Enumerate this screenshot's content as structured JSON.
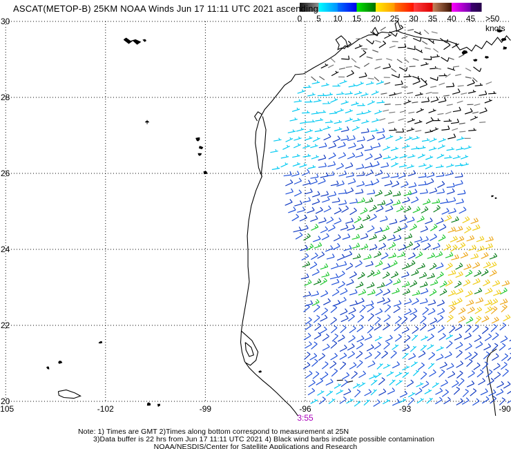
{
  "header": {
    "title": "ASCAT(METOP-B) 25KM NOAA Winds Jun 17 11:11 UTC 2021 ascending",
    "colorbar": {
      "tick_labels": [
        "0",
        "5",
        "10",
        "15",
        "20",
        "25",
        "30",
        "35",
        "40",
        "45"
      ],
      "last_label": ">50 knots",
      "segments": [
        {
          "c1": "#151515",
          "c2": "#8f8f8f"
        },
        {
          "c1": "#00ffff",
          "c2": "#0090ff"
        },
        {
          "c1": "#0070ff",
          "c2": "#0000ee"
        },
        {
          "c1": "#00e800",
          "c2": "#006e00"
        },
        {
          "c1": "#ffee00",
          "c2": "#ff9900"
        },
        {
          "c1": "#ff7700",
          "c2": "#ff1100"
        },
        {
          "c1": "#ff4040",
          "c2": "#dd0000"
        },
        {
          "c1": "#c8845c",
          "c2": "#3d1404"
        },
        {
          "c1": "#ff00ff",
          "c2": "#7000aa"
        },
        {
          "c1": "#3c0070",
          "c2": "#26004a"
        }
      ]
    }
  },
  "axes": {
    "lat_labels": [
      "30",
      "28",
      "26",
      "24",
      "22",
      "20"
    ],
    "lat_values": [
      30,
      28,
      26,
      24,
      22,
      20
    ],
    "lon_labels": [
      "-105",
      "-102",
      "-99",
      "-96",
      "-93",
      "-90"
    ],
    "lon_values": [
      -105,
      -102,
      -99,
      -96,
      -93,
      -90
    ]
  },
  "time_label": {
    "text": "3:55",
    "color": "#aa00bb",
    "at_lon": -96
  },
  "notes": {
    "line1": "Note: 1) Times are GMT 2)Times along bottom correspond to measurement at 25N",
    "line2": "3)Data buffer is 22 hrs from Jun 17 11:11 UTC 2021 4) Black wind barbs indicate possible contamination",
    "line3": "NOAA/NESDIS/Center for Satellite Applications and Research"
  },
  "chart_data": {
    "type": "wind-barb-map",
    "title": "ASCAT(METOP-B) 25KM NOAA Winds Jun 17 11:11 UTC 2021 ascending",
    "units": "knots",
    "speed_bins": [
      0,
      5,
      10,
      15,
      20,
      25,
      30,
      35,
      40,
      45,
      50
    ],
    "lon_range": [
      -105,
      -90
    ],
    "lat_range": [
      20,
      30
    ],
    "lon_grid": [
      -105,
      -102,
      -99,
      -96,
      -93
    ],
    "lat_grid": [
      30,
      28,
      26,
      24,
      22,
      20
    ],
    "grid_style": "dotted",
    "satellite_pass": "ascending",
    "equator_time_label": "3:55",
    "barb_grid": {
      "dlon": 0.27,
      "dlat": 0.24
    },
    "swath": {
      "rows": [
        [
          29.75,
          -94.1,
          -92.1
        ],
        [
          29.25,
          -94.9,
          -91.4
        ],
        [
          28.8,
          -95.6,
          -90.9
        ],
        [
          28.2,
          -96.2,
          -90.5
        ],
        [
          27.6,
          -96.45,
          -90.45
        ],
        [
          27.0,
          -96.6,
          -91.1
        ],
        [
          26.3,
          -96.75,
          -91.25
        ],
        [
          25.6,
          -96.7,
          -91.3
        ],
        [
          25.0,
          -96.6,
          -91.2
        ],
        [
          24.3,
          -96.35,
          -90.55
        ],
        [
          23.5,
          -96.15,
          -90.25
        ],
        [
          22.6,
          -96.1,
          -89.85
        ],
        [
          21.8,
          -96.1,
          -89.8
        ],
        [
          21.0,
          -96.15,
          -89.8
        ],
        [
          20.3,
          -96.0,
          -89.8
        ],
        [
          19.75,
          -95.85,
          -89.8
        ]
      ]
    },
    "wind_zones": [
      {
        "regime": "dark",
        "lat": [
          28.45,
          29.95
        ],
        "lon": [
          -97.5,
          -89.7
        ]
      },
      {
        "regime": "dark",
        "lat": [
          26.9,
          28.45
        ],
        "lon": [
          -93.85,
          -89.7
        ]
      },
      {
        "regime": "cyan",
        "lat": [
          25.95,
          26.9
        ],
        "lon": [
          -93.7,
          -89.7
        ]
      },
      {
        "regime": "cyan",
        "lat": [
          27.1,
          28.45
        ],
        "lon": [
          -97.5,
          -93.85
        ]
      },
      {
        "regime": "cyan",
        "lat": [
          26.05,
          27.1
        ],
        "lon": [
          -97.5,
          -95.65
        ]
      },
      {
        "regime": "yellow",
        "lat": [
          21.9,
          24.75
        ],
        "lon": [
          -91.95,
          -89.7
        ]
      },
      {
        "regime": "green",
        "lat": [
          22.7,
          25.45
        ],
        "lon": [
          -94.65,
          -91.95
        ]
      },
      {
        "regime": "green-sparse",
        "lat": [
          22.4,
          24.75
        ],
        "lon": [
          -96.9,
          -95.5
        ]
      },
      {
        "regime": "cyan-mix",
        "lat": [
          19.6,
          21.65
        ],
        "lon": [
          -94.45,
          -91.75
        ]
      },
      {
        "regime": "cyan-mix",
        "lat": [
          19.6,
          20.35
        ],
        "lon": [
          -96.3,
          -94.45
        ]
      }
    ],
    "default_regime": "blue",
    "regimes": {
      "dark": {
        "speeds": [
          2,
          13
        ],
        "note": "possible contamination, black/gray"
      },
      "cyan": {
        "speeds": [
          6,
          9
        ]
      },
      "blue": {
        "speeds": [
          10,
          15
        ]
      },
      "green": {
        "speeds": [
          15,
          20
        ],
        "mix_blue": 0.35
      },
      "green-sparse": {
        "speeds": [
          14,
          18
        ],
        "mix_blue": 0.58
      },
      "yellow": {
        "speeds": [
          20,
          25
        ],
        "mix_green": 0.2
      },
      "cyan-mix": {
        "speeds": [
          6,
          13
        ]
      }
    },
    "speed_colors": [
      [
        10,
        "#00c9f2"
      ],
      [
        13,
        "#1e4fd8"
      ],
      [
        15,
        "#0f38c0"
      ],
      [
        17.5,
        "#1ec82e"
      ],
      [
        20,
        "#0a7d1a"
      ],
      [
        23,
        "#f0cd17"
      ],
      [
        25.1,
        "#eda81c"
      ]
    ],
    "dark_colors": [
      "#000000",
      "#555555",
      "#7a7a7a"
    ],
    "direction_from_by_lat": [
      {
        "lat_min": 28.45,
        "base": 95,
        "spread": 80
      },
      {
        "lat_min": 26.9,
        "base": 78,
        "spread": 24
      },
      {
        "lat_min": 25.0,
        "base": 74,
        "spread": 20
      },
      {
        "lat_min": 22.5,
        "base": 68,
        "spread": 18
      },
      {
        "lat_min": 0,
        "base": 56,
        "spread": 20
      }
    ],
    "extra_dark_barbs": [
      [
        -95.05,
        20.55
      ],
      [
        -94.75,
        20.5
      ]
    ],
    "extra_cyan_barbs": [
      [
        -97.05,
        26.55
      ],
      [
        -97.0,
        26.1
      ],
      [
        -96.95,
        26.85
      ]
    ],
    "coastlines": {
      "gulf_mainland": [
        [
          -89.83,
          29.5
        ],
        [
          -89.95,
          29.62
        ],
        [
          -90.1,
          29.45
        ],
        [
          -90.22,
          29.58
        ],
        [
          -90.4,
          29.38
        ],
        [
          -90.55,
          29.48
        ],
        [
          -90.7,
          29.28
        ],
        [
          -90.88,
          29.38
        ],
        [
          -91.0,
          29.22
        ],
        [
          -91.15,
          29.32
        ],
        [
          -91.35,
          29.25
        ],
        [
          -91.5,
          29.42
        ],
        [
          -91.7,
          29.48
        ],
        [
          -91.95,
          29.5
        ],
        [
          -92.3,
          29.54
        ],
        [
          -92.7,
          29.6
        ],
        [
          -93.1,
          29.7
        ],
        [
          -93.25,
          29.76
        ],
        [
          -93.48,
          29.7
        ],
        [
          -93.7,
          29.72
        ],
        [
          -93.85,
          29.66
        ],
        [
          -94.1,
          29.64
        ],
        [
          -94.4,
          29.52
        ],
        [
          -94.72,
          29.32
        ],
        [
          -94.8,
          29.36
        ],
        [
          -95.1,
          29.12
        ],
        [
          -95.4,
          28.95
        ],
        [
          -95.75,
          28.78
        ],
        [
          -96.05,
          28.62
        ],
        [
          -96.3,
          28.6
        ],
        [
          -96.42,
          28.44
        ],
        [
          -96.62,
          28.32
        ],
        [
          -96.8,
          28.12
        ],
        [
          -97.0,
          27.9
        ],
        [
          -97.22,
          27.68
        ],
        [
          -97.38,
          27.42
        ],
        [
          -97.48,
          27.1
        ],
        [
          -97.5,
          26.8
        ],
        [
          -97.45,
          26.5
        ],
        [
          -97.4,
          26.15
        ],
        [
          -97.3,
          25.92
        ],
        [
          -97.48,
          25.55
        ],
        [
          -97.62,
          25.15
        ],
        [
          -97.7,
          24.75
        ],
        [
          -97.74,
          24.35
        ],
        [
          -97.72,
          23.95
        ],
        [
          -97.72,
          23.55
        ],
        [
          -97.68,
          23.15
        ],
        [
          -97.75,
          22.75
        ],
        [
          -97.82,
          22.4
        ],
        [
          -97.88,
          22.1
        ],
        [
          -97.92,
          21.85
        ],
        [
          -97.94,
          21.55
        ],
        [
          -97.9,
          21.3
        ],
        [
          -97.82,
          21.05
        ],
        [
          -97.68,
          20.88
        ],
        [
          -97.5,
          20.72
        ],
        [
          -97.28,
          20.55
        ],
        [
          -97.05,
          20.38
        ],
        [
          -96.85,
          20.22
        ],
        [
          -96.62,
          20.02
        ],
        [
          -96.45,
          19.88
        ],
        [
          -96.3,
          19.72
        ],
        [
          -96.22,
          19.62
        ]
      ],
      "padre_island": [
        [
          -97.28,
          27.5
        ],
        [
          -97.18,
          27.15
        ],
        [
          -97.22,
          26.7
        ],
        [
          -97.28,
          26.3
        ],
        [
          -97.32,
          26.0
        ],
        [
          -97.3,
          25.9
        ]
      ],
      "corpus_bay": [
        [
          -97.38,
          27.42
        ],
        [
          -97.3,
          27.55
        ],
        [
          -97.42,
          27.62
        ],
        [
          -97.52,
          27.5
        ],
        [
          -97.44,
          27.38
        ]
      ],
      "galveston_bay": [
        [
          -94.72,
          29.32
        ],
        [
          -94.78,
          29.5
        ],
        [
          -94.92,
          29.62
        ],
        [
          -95.08,
          29.52
        ],
        [
          -94.98,
          29.38
        ],
        [
          -95.02,
          29.26
        ],
        [
          -94.9,
          29.3
        ],
        [
          -94.8,
          29.28
        ]
      ],
      "sabine_lake": [
        [
          -93.82,
          29.7
        ],
        [
          -93.9,
          29.84
        ],
        [
          -93.98,
          29.74
        ],
        [
          -93.88,
          29.64
        ]
      ],
      "calcasieu_lake": [
        [
          -93.25,
          29.76
        ],
        [
          -93.3,
          29.94
        ],
        [
          -93.22,
          30.0
        ],
        [
          -93.14,
          29.82
        ]
      ],
      "tamiahua_barrier": [
        [
          -97.92,
          21.85
        ],
        [
          -97.6,
          21.6
        ],
        [
          -97.42,
          21.3
        ],
        [
          -97.48,
          21.08
        ],
        [
          -97.65,
          20.95
        ],
        [
          -97.8,
          21.02
        ]
      ],
      "tamiahua_island": [
        [
          -97.8,
          21.55
        ],
        [
          -97.62,
          21.42
        ],
        [
          -97.55,
          21.22
        ],
        [
          -97.68,
          21.18
        ],
        [
          -97.78,
          21.35
        ],
        [
          -97.8,
          21.55
        ]
      ],
      "yucatan": [
        [
          -90.25,
          21.38
        ],
        [
          -90.42,
          21.28
        ],
        [
          -90.52,
          21.15
        ],
        [
          -90.55,
          20.95
        ],
        [
          -90.48,
          20.6
        ],
        [
          -90.38,
          20.2
        ],
        [
          -90.32,
          19.9
        ],
        [
          -90.28,
          19.62
        ]
      ],
      "chapala_lake": [
        [
          -103.42,
          20.26
        ],
        [
          -103.18,
          20.3
        ],
        [
          -102.92,
          20.22
        ],
        [
          -102.75,
          20.14
        ],
        [
          -102.95,
          20.08
        ],
        [
          -103.25,
          20.1
        ],
        [
          -103.4,
          20.16
        ],
        [
          -103.42,
          20.26
        ]
      ],
      "amistad_reservoir": [
        [
          -101.45,
          29.52
        ],
        [
          -101.3,
          29.42
        ],
        [
          -101.18,
          29.5
        ],
        [
          -101.05,
          29.4
        ],
        [
          -100.95,
          29.46
        ],
        [
          -101.1,
          29.52
        ],
        [
          -101.25,
          29.48
        ],
        [
          -101.38,
          29.56
        ],
        [
          -101.45,
          29.52
        ]
      ]
    },
    "island_lake_blobs": [
      {
        "c": [
          -90.18,
          29.75
        ],
        "s": 0.14
      },
      {
        "c": [
          -90.05,
          29.52
        ],
        "s": 0.12
      },
      {
        "c": [
          -90.0,
          29.3
        ],
        "s": 0.1
      },
      {
        "c": [
          -91.22,
          29.18
        ],
        "s": 0.13
      },
      {
        "c": [
          -90.88,
          28.98
        ],
        "s": 0.1
      },
      {
        "c": [
          -90.55,
          29.06
        ],
        "s": 0.09
      },
      {
        "c": [
          -100.82,
          29.5
        ],
        "s": 0.08
      },
      {
        "c": [
          -99.22,
          26.9
        ],
        "s": 0.14
      },
      {
        "c": [
          -99.13,
          26.68
        ],
        "s": 0.12
      },
      {
        "c": [
          -99.16,
          26.5
        ],
        "s": 0.1
      },
      {
        "c": [
          -99.0,
          26.02
        ],
        "s": 0.13
      },
      {
        "c": [
          -102.15,
          21.55
        ],
        "s": 0.07
      },
      {
        "c": [
          -103.38,
          21.02
        ],
        "s": 0.1
      },
      {
        "c": [
          -103.73,
          20.88
        ],
        "s": 0.07
      },
      {
        "c": [
          -100.7,
          19.93
        ],
        "s": 0.12
      },
      {
        "c": [
          -100.4,
          19.9
        ],
        "s": 0.07
      },
      {
        "c": [
          -90.38,
          25.4
        ],
        "s": 0.05
      },
      {
        "c": [
          -90.28,
          25.35
        ],
        "s": 0.04
      },
      {
        "c": [
          -97.35,
          20.78
        ],
        "s": 0.06
      }
    ],
    "crosses": [
      [
        -100.75,
        27.35
      ]
    ]
  }
}
